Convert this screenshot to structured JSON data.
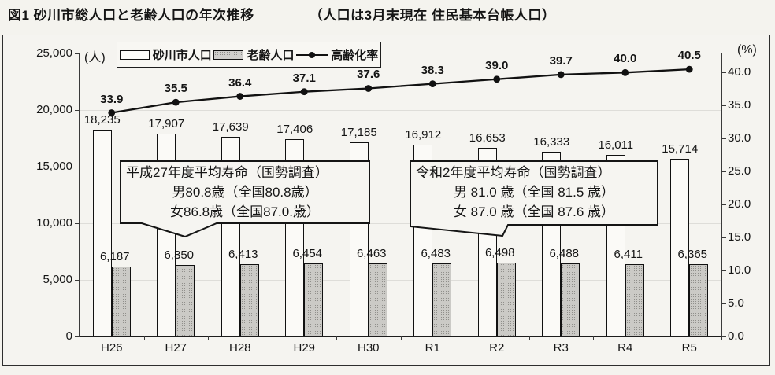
{
  "title": {
    "main": "図1 砂川市総人口と老齢人口の年次推移",
    "note": "（人口は3月末現在 住民基本台帳人口）"
  },
  "legend": {
    "items": [
      {
        "label": "砂川市人口",
        "swatch": "bar-white"
      },
      {
        "label": "老齢人口",
        "swatch": "bar-gray"
      },
      {
        "label": "高齢化率",
        "swatch": "line-marker"
      }
    ]
  },
  "axes": {
    "left_unit": "(人)",
    "right_unit": "(%)",
    "left_ticks": [
      {
        "value": 25000,
        "label": "25,000"
      },
      {
        "value": 20000,
        "label": "20,000"
      },
      {
        "value": 15000,
        "label": "15,000"
      },
      {
        "value": 10000,
        "label": "10,000"
      },
      {
        "value": 5000,
        "label": "5,000"
      },
      {
        "value": 0,
        "label": "0"
      }
    ],
    "right_ticks": [
      {
        "value": 40,
        "label": "40.0"
      },
      {
        "value": 35,
        "label": "35.0"
      },
      {
        "value": 30,
        "label": "30.0"
      },
      {
        "value": 25,
        "label": "25.0"
      },
      {
        "value": 20,
        "label": "20.0"
      },
      {
        "value": 15,
        "label": "15.0"
      },
      {
        "value": 10,
        "label": "10.0"
      },
      {
        "value": 5,
        "label": "5.0"
      },
      {
        "value": 0,
        "label": "0.0"
      }
    ]
  },
  "chart_data": {
    "type": "bar+line combo",
    "title": "図1 砂川市総人口と老齢人口の年次推移（人口は3月末現在 住民基本台帳人口）",
    "categories": [
      "H26",
      "H27",
      "H28",
      "H29",
      "H30",
      "R1",
      "R2",
      "R3",
      "R4",
      "R5"
    ],
    "series": [
      {
        "name": "砂川市人口",
        "type": "bar",
        "style": "white",
        "axis": "left",
        "values": [
          18235,
          17907,
          17639,
          17406,
          17185,
          16912,
          16653,
          16333,
          16011,
          15714
        ]
      },
      {
        "name": "老齢人口",
        "type": "bar",
        "style": "gray",
        "axis": "left",
        "values": [
          6187,
          6350,
          6413,
          6454,
          6463,
          6483,
          6498,
          6488,
          6411,
          6365
        ]
      },
      {
        "name": "高齢化率",
        "type": "line",
        "axis": "right",
        "values": [
          33.9,
          35.5,
          36.4,
          37.1,
          37.6,
          38.3,
          39.0,
          39.7,
          40.0,
          40.5
        ]
      }
    ],
    "left_axis": {
      "min": 0,
      "max": 25000,
      "step": 5000,
      "unit": "人"
    },
    "right_axis": {
      "min": 0,
      "max_labeled": 40,
      "step": 5,
      "plot_top_value": 42.9,
      "unit": "%"
    },
    "legend_position": "top",
    "grid": "horizontal-faint"
  },
  "callouts": [
    {
      "lines": [
        "平成27年度平均寿命（国勢調査）",
        "男80.8歳（全国80.8歳）",
        "女86.8歳（全国87.0.歳）"
      ]
    },
    {
      "lines": [
        "令和2年度平均寿命（国勢調査）",
        "男 81.0 歳（全国 81.5 歳）",
        "女 87.0 歳（全国 87.6 歳）"
      ]
    }
  ],
  "colors": {
    "ink": "#151515",
    "bar_white": "#fbfaf7",
    "bar_gray": "#cbcac6",
    "line": "#111111",
    "paper": "#f5f4f0"
  }
}
